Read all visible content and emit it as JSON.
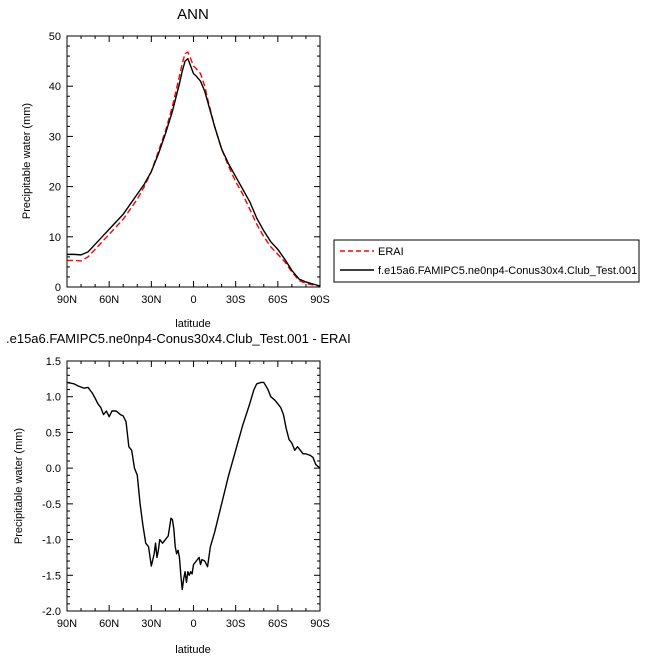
{
  "chart_data": [
    {
      "type": "line",
      "title": "ANN",
      "xlabel": "latitude",
      "ylabel": "Precipitable water (mm)",
      "xlim": [
        90,
        -90
      ],
      "ylim": [
        0,
        50
      ],
      "xticks": [
        {
          "value": 90,
          "label": "90N"
        },
        {
          "value": 60,
          "label": "60N"
        },
        {
          "value": 30,
          "label": "30N"
        },
        {
          "value": 0,
          "label": "0"
        },
        {
          "value": -30,
          "label": "30S"
        },
        {
          "value": -60,
          "label": "60S"
        },
        {
          "value": -90,
          "label": "90S"
        }
      ],
      "yticks": [
        0,
        10,
        20,
        30,
        40,
        50
      ],
      "legend_position": "right",
      "series": [
        {
          "name": "ERAI",
          "color": "#ff0000",
          "dash": true,
          "x": [
            90,
            85,
            80,
            75,
            70,
            65,
            60,
            55,
            50,
            45,
            40,
            35,
            30,
            25,
            20,
            15,
            10,
            8,
            6,
            4,
            2,
            0,
            -2,
            -5,
            -8,
            -10,
            -15,
            -20,
            -25,
            -30,
            -35,
            -40,
            -45,
            -50,
            -55,
            -60,
            -65,
            -70,
            -75,
            -80,
            -85,
            -90
          ],
          "y": [
            5.3,
            5.3,
            5.2,
            6.0,
            7.5,
            9.0,
            10.5,
            12.0,
            13.5,
            15.5,
            17.5,
            20.0,
            23.0,
            27.0,
            31.0,
            36.0,
            42.0,
            44.5,
            46.5,
            46.8,
            45.5,
            44.0,
            43.5,
            42.5,
            40.0,
            37.5,
            32.0,
            27.5,
            24.0,
            21.0,
            18.5,
            15.5,
            12.5,
            10.0,
            8.0,
            6.5,
            5.0,
            3.0,
            1.3,
            0.7,
            0.4,
            0.2
          ]
        },
        {
          "name": "f.e15a6.FAMIPC5.ne0np4-Conus30x4.Club_Test.001",
          "color": "#000000",
          "dash": false,
          "x": [
            90,
            85,
            80,
            75,
            70,
            65,
            60,
            55,
            50,
            45,
            40,
            35,
            30,
            25,
            20,
            15,
            10,
            8,
            6,
            4,
            2,
            0,
            -2,
            -5,
            -8,
            -10,
            -15,
            -20,
            -25,
            -30,
            -35,
            -40,
            -45,
            -50,
            -55,
            -60,
            -65,
            -70,
            -75,
            -80,
            -85,
            -90
          ],
          "y": [
            6.5,
            6.5,
            6.4,
            7.0,
            8.5,
            10.0,
            11.5,
            13.0,
            14.5,
            16.5,
            18.5,
            20.5,
            23.0,
            26.5,
            30.5,
            35.0,
            40.5,
            43.0,
            45.0,
            45.5,
            44.0,
            42.5,
            42.0,
            41.0,
            39.0,
            37.0,
            32.0,
            27.5,
            24.5,
            22.0,
            19.5,
            17.0,
            13.7,
            11.2,
            9.0,
            7.5,
            5.5,
            3.3,
            1.6,
            1.0,
            0.6,
            0.2
          ]
        }
      ]
    },
    {
      "type": "line",
      "title": ".e15a6.FAMIPC5.ne0np4-Conus30x4.Club_Test.001 - ERAI",
      "xlabel": "latitude",
      "ylabel": "Precipitable water (mm)",
      "xlim": [
        90,
        -90
      ],
      "ylim": [
        -2.0,
        1.5
      ],
      "xticks": [
        {
          "value": 90,
          "label": "90N"
        },
        {
          "value": 60,
          "label": "60N"
        },
        {
          "value": 30,
          "label": "30N"
        },
        {
          "value": 0,
          "label": "0"
        },
        {
          "value": -30,
          "label": "30S"
        },
        {
          "value": -60,
          "label": "60S"
        },
        {
          "value": -90,
          "label": "90S"
        }
      ],
      "yticks": [
        "-2.0",
        "-1.5",
        "-1.0",
        "-0.5",
        "0.0",
        "0.5",
        "1.0",
        "1.5"
      ],
      "series": [
        {
          "color": "#000000",
          "x": [
            90,
            85,
            82,
            78,
            75,
            72,
            70,
            68,
            66,
            64,
            62,
            60,
            58,
            55,
            52,
            50,
            48,
            46,
            44,
            42,
            40,
            38,
            36,
            34,
            32,
            30,
            28,
            27,
            26,
            25,
            24,
            22,
            20,
            18,
            16,
            15,
            14,
            13,
            12,
            11,
            10,
            9,
            8,
            7,
            6,
            5,
            4,
            3,
            2,
            1,
            0,
            -2,
            -4,
            -5,
            -6,
            -8,
            -10,
            -12,
            -15,
            -20,
            -25,
            -30,
            -35,
            -40,
            -43,
            -45,
            -48,
            -50,
            -53,
            -55,
            -58,
            -60,
            -62,
            -64,
            -66,
            -68,
            -70,
            -72,
            -74,
            -76,
            -78,
            -80,
            -83,
            -85,
            -87,
            -90
          ],
          "y": [
            1.2,
            1.18,
            1.15,
            1.12,
            1.13,
            1.05,
            0.98,
            0.9,
            0.85,
            0.75,
            0.8,
            0.72,
            0.8,
            0.8,
            0.75,
            0.73,
            0.65,
            0.3,
            0.25,
            0.0,
            -0.1,
            -0.5,
            -0.8,
            -1.05,
            -1.1,
            -1.37,
            -1.2,
            -1.05,
            -1.25,
            -1.15,
            -1.0,
            -1.05,
            -1.0,
            -0.95,
            -0.7,
            -0.72,
            -0.85,
            -1.1,
            -1.2,
            -1.15,
            -1.25,
            -1.5,
            -1.7,
            -1.55,
            -1.45,
            -1.6,
            -1.45,
            -1.5,
            -1.45,
            -1.48,
            -1.35,
            -1.3,
            -1.25,
            -1.35,
            -1.28,
            -1.3,
            -1.38,
            -1.1,
            -0.9,
            -0.5,
            -0.1,
            0.25,
            0.6,
            0.9,
            1.1,
            1.18,
            1.2,
            1.2,
            1.1,
            1.0,
            0.95,
            0.9,
            0.85,
            0.75,
            0.55,
            0.4,
            0.35,
            0.25,
            0.3,
            0.25,
            0.2,
            0.2,
            0.18,
            0.15,
            0.05,
            0.0
          ]
        }
      ]
    }
  ]
}
